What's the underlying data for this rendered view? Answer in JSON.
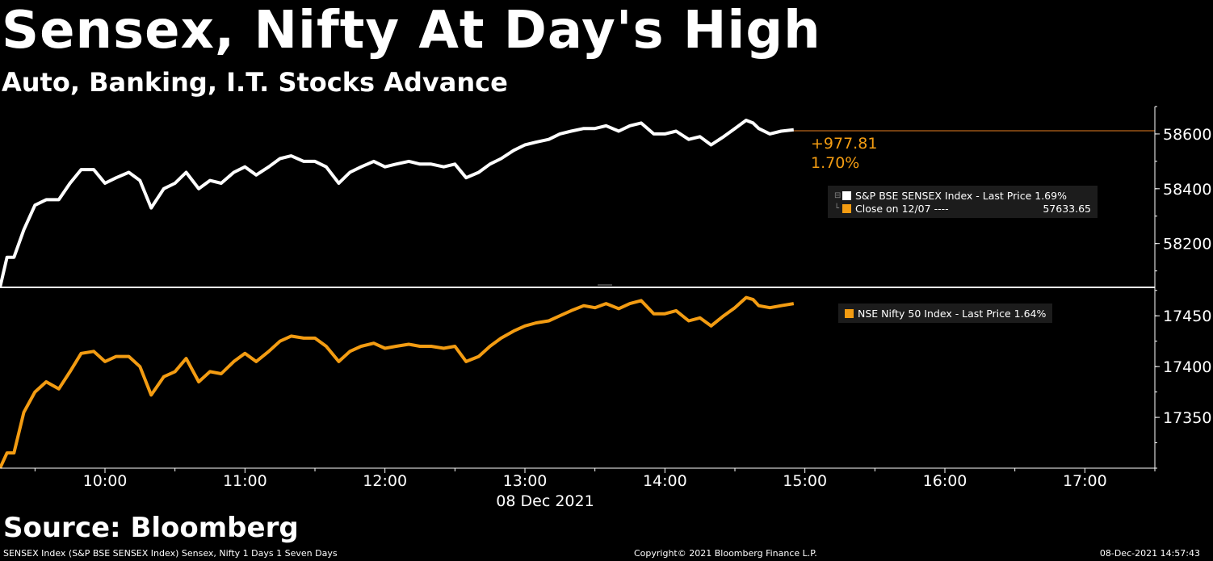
{
  "header": {
    "title": "Sensex, Nifty At Day's High",
    "subtitle": "Auto, Banking, I.T. Stocks Advance"
  },
  "source": "Source: Bloomberg",
  "footer": {
    "left": "SENSEX Index (S&P BSE SENSEX Index) Sensex, Nifty 1 Days 1 Seven Days",
    "middle": "Copyright© 2021 Bloomberg Finance L.P.",
    "right": "08-Dec-2021 14:57:43"
  },
  "colors": {
    "sensex": "#ffffff",
    "nifty": "#f39c12",
    "close_line": "#e67e22",
    "axis": "#ffffff"
  },
  "annotation": {
    "change": "+977.81",
    "pct": "1.70%"
  },
  "legend_top": {
    "series_label": "S&P BSE SENSEX Index - Last Price 1.69%",
    "close_label": "Close on 12/07 ----",
    "close_value": "57633.65"
  },
  "legend_bottom": {
    "series_label": "NSE Nifty 50 Index - Last Price 1.64%"
  },
  "chart_data": [
    {
      "type": "line",
      "name": "S&P BSE SENSEX Index",
      "x_unit": "hours",
      "xlim": [
        9.25,
        17.5
      ],
      "ylim": [
        58040,
        58700
      ],
      "yticks": [
        58200,
        58400,
        58600
      ],
      "reference_line": 58611.46,
      "x": [
        9.25,
        9.3,
        9.35,
        9.42,
        9.5,
        9.58,
        9.67,
        9.75,
        9.83,
        9.92,
        10.0,
        10.08,
        10.17,
        10.25,
        10.33,
        10.42,
        10.5,
        10.58,
        10.67,
        10.75,
        10.83,
        10.92,
        11.0,
        11.08,
        11.17,
        11.25,
        11.33,
        11.42,
        11.5,
        11.58,
        11.67,
        11.75,
        11.83,
        11.92,
        12.0,
        12.08,
        12.17,
        12.25,
        12.33,
        12.42,
        12.5,
        12.58,
        12.67,
        12.75,
        12.83,
        12.92,
        13.0,
        13.08,
        13.17,
        13.25,
        13.33,
        13.42,
        13.5,
        13.58,
        13.67,
        13.75,
        13.83,
        13.92,
        14.0,
        14.08,
        14.17,
        14.25,
        14.33,
        14.42,
        14.5,
        14.58,
        14.63,
        14.67,
        14.75,
        14.83,
        14.92
      ],
      "values": [
        58040,
        58150,
        58150,
        58250,
        58340,
        58360,
        58360,
        58420,
        58470,
        58470,
        58420,
        58440,
        58460,
        58430,
        58330,
        58400,
        58420,
        58460,
        58400,
        58430,
        58420,
        58460,
        58480,
        58450,
        58480,
        58510,
        58520,
        58500,
        58500,
        58480,
        58420,
        58460,
        58480,
        58500,
        58480,
        58490,
        58500,
        58490,
        58490,
        58480,
        58490,
        58440,
        58460,
        58490,
        58510,
        58540,
        58560,
        58570,
        58580,
        58600,
        58610,
        58620,
        58620,
        58630,
        58610,
        58630,
        58640,
        58600,
        58600,
        58610,
        58580,
        58590,
        58560,
        58590,
        58620,
        58650,
        58640,
        58620,
        58600,
        58610,
        58615
      ]
    },
    {
      "type": "line",
      "name": "NSE Nifty 50 Index",
      "x_unit": "hours",
      "xlim": [
        9.25,
        17.5
      ],
      "ylim": [
        17300,
        17478
      ],
      "yticks": [
        17350,
        17400,
        17450
      ],
      "x": [
        9.25,
        9.3,
        9.35,
        9.42,
        9.5,
        9.58,
        9.67,
        9.75,
        9.83,
        9.92,
        10.0,
        10.08,
        10.17,
        10.25,
        10.33,
        10.42,
        10.5,
        10.58,
        10.67,
        10.75,
        10.83,
        10.92,
        11.0,
        11.08,
        11.17,
        11.25,
        11.33,
        11.42,
        11.5,
        11.58,
        11.67,
        11.75,
        11.83,
        11.92,
        12.0,
        12.08,
        12.17,
        12.25,
        12.33,
        12.42,
        12.5,
        12.58,
        12.67,
        12.75,
        12.83,
        12.92,
        13.0,
        13.08,
        13.17,
        13.25,
        13.33,
        13.42,
        13.5,
        13.58,
        13.67,
        13.75,
        13.83,
        13.92,
        14.0,
        14.08,
        14.17,
        14.25,
        14.33,
        14.42,
        14.5,
        14.58,
        14.63,
        14.67,
        14.75,
        14.83,
        14.92
      ],
      "values": [
        17300,
        17315,
        17315,
        17355,
        17375,
        17385,
        17378,
        17395,
        17413,
        17415,
        17405,
        17410,
        17410,
        17400,
        17372,
        17390,
        17395,
        17408,
        17385,
        17395,
        17393,
        17405,
        17413,
        17405,
        17415,
        17425,
        17430,
        17428,
        17428,
        17420,
        17405,
        17415,
        17420,
        17423,
        17418,
        17420,
        17422,
        17420,
        17420,
        17418,
        17420,
        17405,
        17410,
        17420,
        17428,
        17435,
        17440,
        17443,
        17445,
        17450,
        17455,
        17460,
        17458,
        17462,
        17457,
        17462,
        17465,
        17452,
        17452,
        17455,
        17445,
        17448,
        17440,
        17450,
        17458,
        17468,
        17466,
        17460,
        17458,
        17460,
        17462
      ]
    }
  ],
  "x_axis": {
    "ticks": [
      10,
      11,
      12,
      13,
      14,
      15,
      16,
      17
    ],
    "tick_labels": [
      "10:00",
      "11:00",
      "12:00",
      "13:00",
      "14:00",
      "15:00",
      "16:00",
      "17:00"
    ],
    "date_label": "08 Dec 2021"
  }
}
